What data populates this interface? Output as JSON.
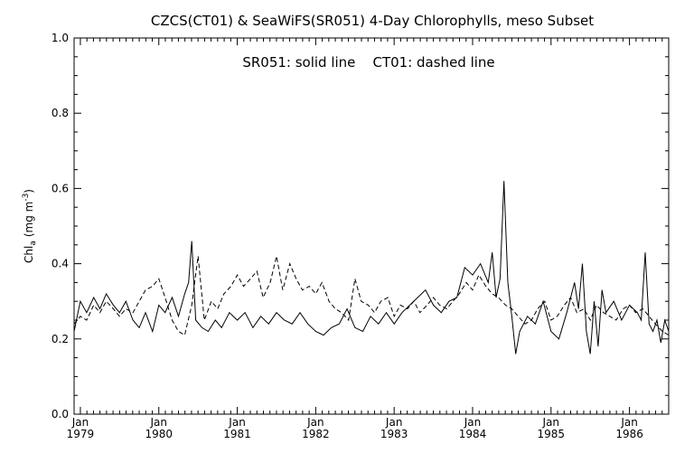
{
  "chart_data": {
    "type": "line",
    "title": "CZCS(CT01) & SeaWiFS(SR051) 4-Day Chlorophylls, meso Subset",
    "annotation": "SR051: solid line    CT01: dashed line",
    "ylabel": "Chl",
    "ylabel_subscript": "a",
    "ylabel_units": "(mg m",
    "ylabel_units_sup": "-3",
    "ylabel_units_close": ")",
    "ylim": [
      0.0,
      1.0
    ],
    "xlim": [
      1978.92,
      1986.5
    ],
    "yticks": [
      "0.0",
      "0.2",
      "0.4",
      "0.6",
      "0.8",
      "1.0"
    ],
    "xticks": [
      {
        "top": "Jan",
        "bottom": "1979",
        "x": 1979.0
      },
      {
        "top": "Jan",
        "bottom": "1980",
        "x": 1980.0
      },
      {
        "top": "Jan",
        "bottom": "1981",
        "x": 1981.0
      },
      {
        "top": "Jan",
        "bottom": "1982",
        "x": 1982.0
      },
      {
        "top": "Jan",
        "bottom": "1983",
        "x": 1983.0
      },
      {
        "top": "Jan",
        "bottom": "1984",
        "x": 1984.0
      },
      {
        "top": "Jan",
        "bottom": "1985",
        "x": 1985.0
      },
      {
        "top": "Jan",
        "bottom": "1986",
        "x": 1986.0
      }
    ],
    "series": [
      {
        "name": "SR051",
        "style": "solid",
        "x": [
          1978.92,
          1979.0,
          1979.08,
          1979.17,
          1979.25,
          1979.33,
          1979.42,
          1979.5,
          1979.58,
          1979.67,
          1979.75,
          1979.83,
          1979.92,
          1980.0,
          1980.08,
          1980.17,
          1980.25,
          1980.33,
          1980.38,
          1980.42,
          1980.47,
          1980.55,
          1980.63,
          1980.72,
          1980.8,
          1980.9,
          1981.0,
          1981.1,
          1981.2,
          1981.3,
          1981.4,
          1981.5,
          1981.6,
          1981.7,
          1981.8,
          1981.9,
          1982.0,
          1982.1,
          1982.2,
          1982.3,
          1982.4,
          1982.5,
          1982.6,
          1982.7,
          1982.8,
          1982.9,
          1983.0,
          1983.1,
          1983.2,
          1983.3,
          1983.4,
          1983.5,
          1983.6,
          1983.7,
          1983.8,
          1983.9,
          1984.0,
          1984.1,
          1984.2,
          1984.25,
          1984.3,
          1984.35,
          1984.4,
          1984.45,
          1984.5,
          1984.55,
          1984.6,
          1984.7,
          1984.8,
          1984.9,
          1985.0,
          1985.1,
          1985.2,
          1985.3,
          1985.35,
          1985.4,
          1985.45,
          1985.5,
          1985.55,
          1985.6,
          1985.65,
          1985.7,
          1985.8,
          1985.9,
          1986.0,
          1986.1,
          1986.15,
          1986.2,
          1986.25,
          1986.3,
          1986.35,
          1986.4,
          1986.45,
          1986.5
        ],
        "y": [
          0.22,
          0.3,
          0.27,
          0.31,
          0.28,
          0.32,
          0.29,
          0.27,
          0.3,
          0.25,
          0.23,
          0.27,
          0.22,
          0.29,
          0.27,
          0.31,
          0.26,
          0.32,
          0.35,
          0.46,
          0.25,
          0.23,
          0.22,
          0.25,
          0.23,
          0.27,
          0.25,
          0.27,
          0.23,
          0.26,
          0.24,
          0.27,
          0.25,
          0.24,
          0.27,
          0.24,
          0.22,
          0.21,
          0.23,
          0.24,
          0.28,
          0.23,
          0.22,
          0.26,
          0.24,
          0.27,
          0.24,
          0.27,
          0.29,
          0.31,
          0.33,
          0.29,
          0.27,
          0.3,
          0.31,
          0.39,
          0.37,
          0.4,
          0.35,
          0.43,
          0.31,
          0.36,
          0.62,
          0.35,
          0.26,
          0.16,
          0.22,
          0.26,
          0.24,
          0.3,
          0.22,
          0.2,
          0.27,
          0.35,
          0.28,
          0.4,
          0.22,
          0.16,
          0.3,
          0.18,
          0.33,
          0.27,
          0.3,
          0.25,
          0.29,
          0.27,
          0.25,
          0.43,
          0.24,
          0.22,
          0.25,
          0.19,
          0.25,
          0.22
        ]
      },
      {
        "name": "CT01",
        "style": "dashed",
        "x": [
          1978.92,
          1979.0,
          1979.08,
          1979.17,
          1979.25,
          1979.33,
          1979.42,
          1979.5,
          1979.58,
          1979.67,
          1979.75,
          1979.83,
          1979.92,
          1980.0,
          1980.08,
          1980.17,
          1980.25,
          1980.33,
          1980.42,
          1980.5,
          1980.58,
          1980.67,
          1980.75,
          1980.83,
          1980.92,
          1981.0,
          1981.08,
          1981.17,
          1981.25,
          1981.33,
          1981.42,
          1981.5,
          1981.58,
          1981.67,
          1981.75,
          1981.83,
          1981.92,
          1982.0,
          1982.08,
          1982.17,
          1982.25,
          1982.33,
          1982.42,
          1982.5,
          1982.58,
          1982.67,
          1982.75,
          1982.83,
          1982.92,
          1983.0,
          1983.08,
          1983.17,
          1983.25,
          1983.33,
          1983.42,
          1983.5,
          1983.58,
          1983.67,
          1983.75,
          1983.83,
          1983.92,
          1984.0,
          1984.08,
          1984.17,
          1984.25,
          1984.33,
          1984.42,
          1984.5,
          1984.58,
          1984.67,
          1984.75,
          1984.83,
          1984.92,
          1985.0,
          1985.08,
          1985.17,
          1985.25,
          1985.33,
          1985.42,
          1985.5,
          1985.58,
          1985.67,
          1985.75,
          1985.83,
          1985.92,
          1986.0,
          1986.08,
          1986.17,
          1986.25,
          1986.33,
          1986.42,
          1986.5
        ],
        "y": [
          0.24,
          0.26,
          0.25,
          0.29,
          0.27,
          0.3,
          0.28,
          0.26,
          0.28,
          0.27,
          0.3,
          0.33,
          0.34,
          0.36,
          0.31,
          0.25,
          0.22,
          0.21,
          0.29,
          0.42,
          0.25,
          0.3,
          0.28,
          0.32,
          0.34,
          0.37,
          0.34,
          0.36,
          0.38,
          0.31,
          0.35,
          0.42,
          0.33,
          0.4,
          0.36,
          0.33,
          0.34,
          0.32,
          0.35,
          0.3,
          0.28,
          0.27,
          0.25,
          0.36,
          0.3,
          0.29,
          0.27,
          0.3,
          0.31,
          0.26,
          0.29,
          0.28,
          0.3,
          0.27,
          0.29,
          0.31,
          0.29,
          0.28,
          0.3,
          0.32,
          0.35,
          0.33,
          0.37,
          0.34,
          0.32,
          0.31,
          0.29,
          0.28,
          0.26,
          0.24,
          0.25,
          0.28,
          0.3,
          0.25,
          0.26,
          0.29,
          0.31,
          0.27,
          0.28,
          0.25,
          0.29,
          0.27,
          0.26,
          0.25,
          0.28,
          0.29,
          0.27,
          0.28,
          0.26,
          0.24,
          0.22,
          0.21
        ]
      }
    ]
  }
}
